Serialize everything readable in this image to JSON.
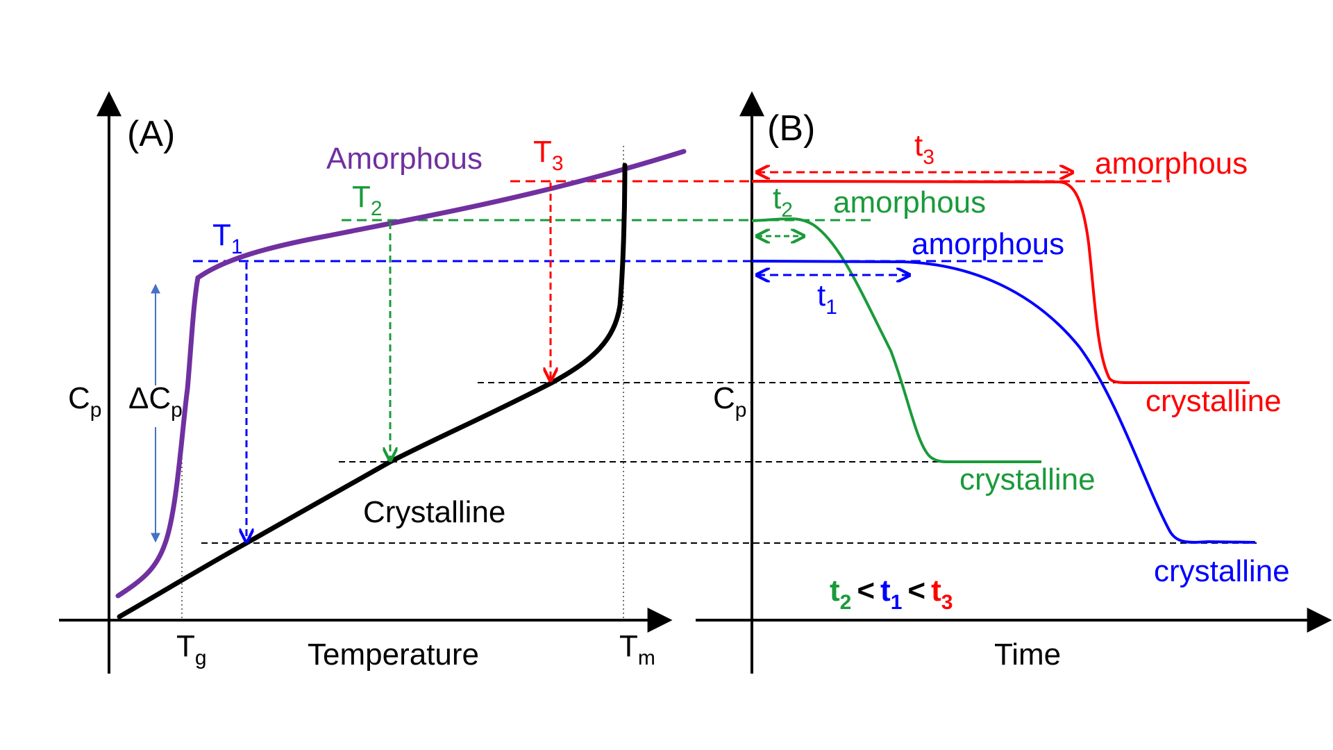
{
  "colors": {
    "amorphous_curve": "#7030a0",
    "crystalline_curve": "#000000",
    "t1": "#0000ff",
    "t2": "#1a9a3a",
    "t3": "#ff0000",
    "delta_arrow": "#4472c4",
    "guide": "#000000"
  },
  "panel_a": {
    "label": "(A)",
    "amorphous_label": "Amorphous",
    "crystalline_label": "Crystalline",
    "t1": {
      "main": "T",
      "sub": "1"
    },
    "t2": {
      "main": "T",
      "sub": "2"
    },
    "t3": {
      "main": "T",
      "sub": "3"
    },
    "y_axis": {
      "main": "C",
      "sub": "p"
    },
    "delta_cp": {
      "main": "ΔC",
      "sub": "p"
    },
    "tg": {
      "main": "T",
      "sub": "g"
    },
    "tm": {
      "main": "T",
      "sub": "m"
    },
    "x_axis_label": "Temperature"
  },
  "panel_b": {
    "label": "(B)",
    "y_axis": {
      "main": "C",
      "sub": "p"
    },
    "x_axis_label": "Time",
    "curves": [
      {
        "name": "t3",
        "amorphous": "amorphous",
        "crystalline": "crystalline",
        "time": {
          "main": "t",
          "sub": "3"
        }
      },
      {
        "name": "t2",
        "amorphous": "amorphous",
        "crystalline": "crystalline",
        "time": {
          "main": "t",
          "sub": "2"
        }
      },
      {
        "name": "t1",
        "amorphous": "amorphous",
        "crystalline": "crystalline",
        "time": {
          "main": "t",
          "sub": "1"
        }
      }
    ],
    "inequality": {
      "a": {
        "main": "t",
        "sub": "2"
      },
      "op1": "<",
      "b": {
        "main": "t",
        "sub": "1"
      },
      "op2": "<",
      "c": {
        "main": "t",
        "sub": "3"
      }
    }
  }
}
